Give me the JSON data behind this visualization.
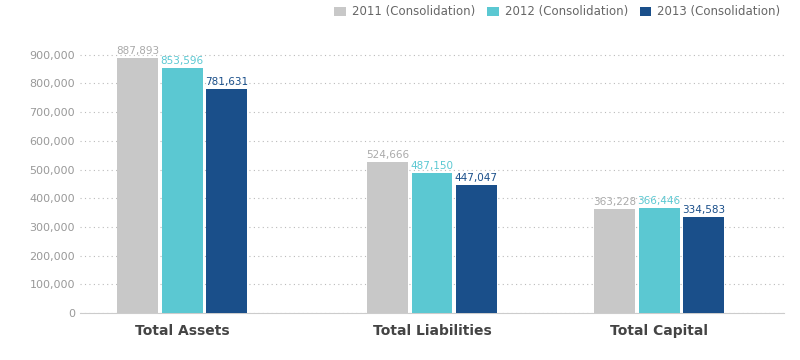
{
  "categories": [
    "Total Assets",
    "Total Liabilities",
    "Total Capital"
  ],
  "series": [
    {
      "label": "2011 (Consolidation)",
      "color": "#c8c8c8",
      "values": [
        887893,
        524666,
        363228
      ]
    },
    {
      "label": "2012 (Consolidation)",
      "color": "#5bc8d2",
      "values": [
        853596,
        487150,
        366446
      ]
    },
    {
      "label": "2013 (Consolidation)",
      "color": "#1a4f8a",
      "values": [
        781631,
        447047,
        334583
      ]
    }
  ],
  "ylim": [
    0,
    940000
  ],
  "yticks": [
    0,
    100000,
    200000,
    300000,
    400000,
    500000,
    600000,
    700000,
    800000,
    900000
  ],
  "ytick_labels": [
    "0",
    "100,000",
    "200,000",
    "300,000",
    "400,000",
    "500,000",
    "600,000",
    "700,000",
    "800,000",
    "900,000"
  ],
  "background_color": "#ffffff",
  "bar_width": 0.18,
  "value_label_color_2011": "#aaaaaa",
  "value_label_color_2012": "#5bc8d2",
  "value_label_color_2013": "#1a4f8a",
  "group_centers": [
    0.45,
    1.55,
    2.55
  ],
  "xlim": [
    0.0,
    3.1
  ]
}
